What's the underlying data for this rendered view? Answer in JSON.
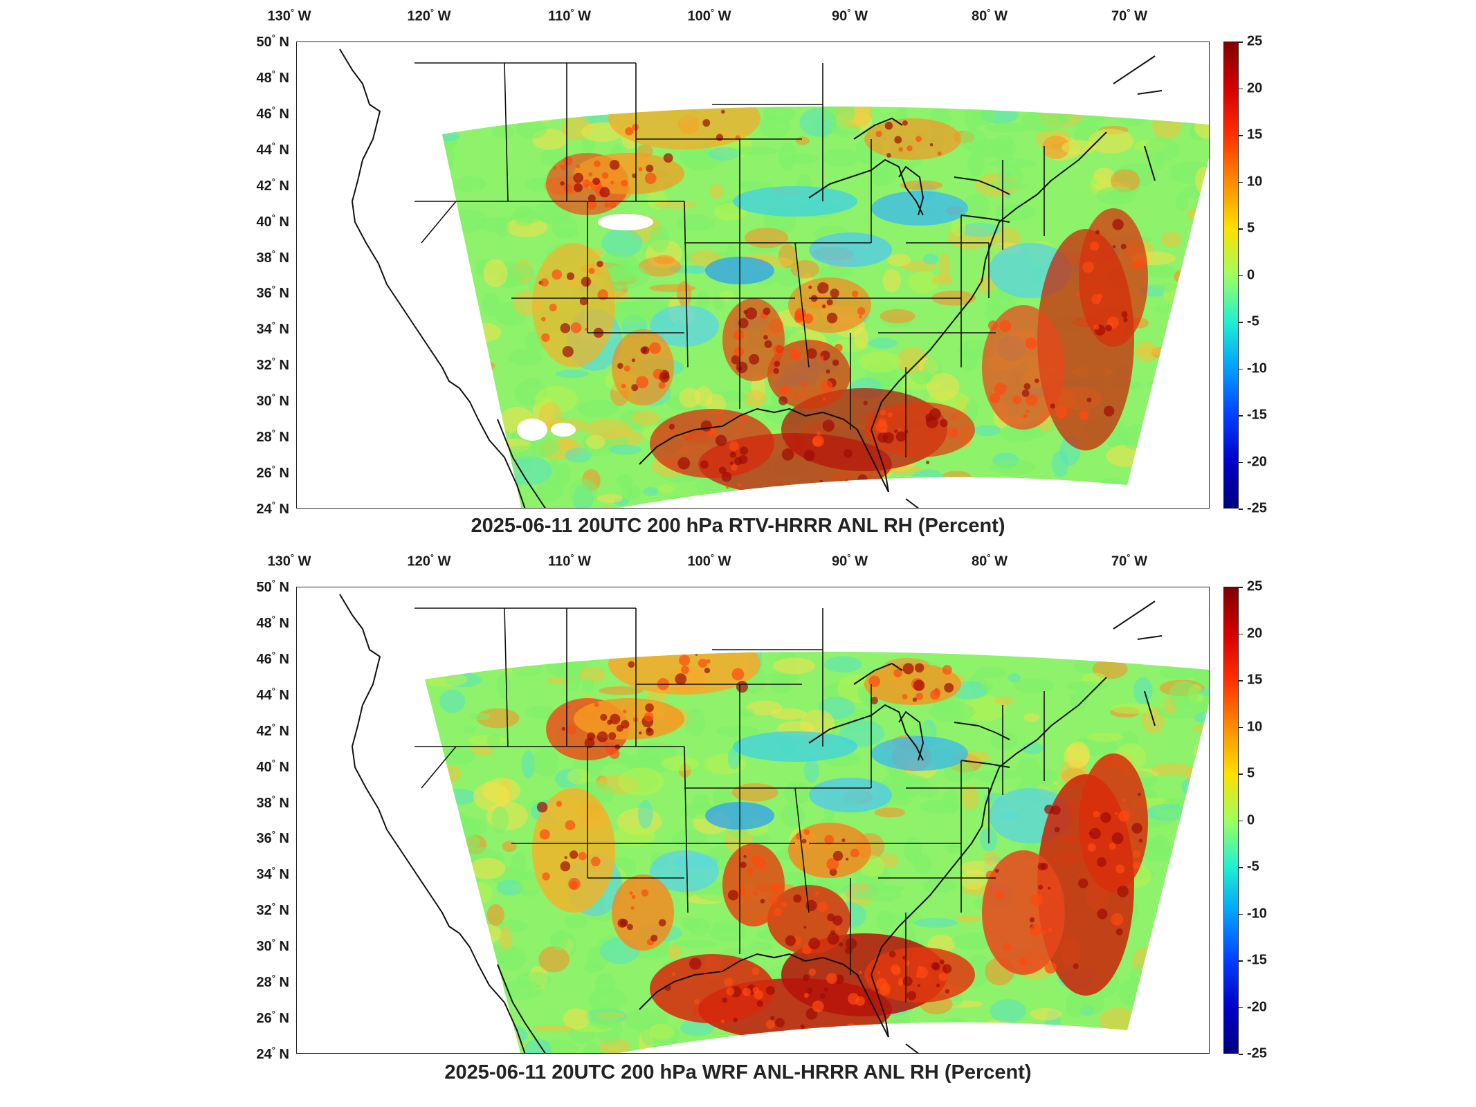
{
  "panels": [
    {
      "title": "2025-06-11 20UTC 200 hPa RTV-HRRR ANL RH (Percent)",
      "variant": "rtv"
    },
    {
      "title": "2025-06-11 20UTC 200 hPa WRF ANL-HRRR ANL RH (Percent)",
      "variant": "wrf"
    }
  ],
  "axes": {
    "lon_ticks": [
      {
        "deg": "130",
        "hemi": "W"
      },
      {
        "deg": "120",
        "hemi": "W"
      },
      {
        "deg": "110",
        "hemi": "W"
      },
      {
        "deg": "100",
        "hemi": "W"
      },
      {
        "deg": "90",
        "hemi": "W"
      },
      {
        "deg": "80",
        "hemi": "W"
      },
      {
        "deg": "70",
        "hemi": "W"
      }
    ],
    "lat_ticks": [
      {
        "deg": "50",
        "hemi": "N"
      },
      {
        "deg": "48",
        "hemi": "N"
      },
      {
        "deg": "46",
        "hemi": "N"
      },
      {
        "deg": "44",
        "hemi": "N"
      },
      {
        "deg": "42",
        "hemi": "N"
      },
      {
        "deg": "40",
        "hemi": "N"
      },
      {
        "deg": "38",
        "hemi": "N"
      },
      {
        "deg": "36",
        "hemi": "N"
      },
      {
        "deg": "34",
        "hemi": "N"
      },
      {
        "deg": "32",
        "hemi": "N"
      },
      {
        "deg": "30",
        "hemi": "N"
      },
      {
        "deg": "28",
        "hemi": "N"
      },
      {
        "deg": "26",
        "hemi": "N"
      },
      {
        "deg": "24",
        "hemi": "N"
      }
    ]
  },
  "colorbar": {
    "ticks": [
      "25",
      "20",
      "15",
      "10",
      "5",
      "0",
      "-5",
      "-10",
      "-15",
      "-20",
      "-25"
    ],
    "range": [
      -25,
      25
    ],
    "colormap": "jet",
    "colors": [
      "#800000",
      "#ff0000",
      "#ff8c00",
      "#ffff00",
      "#7fff7f",
      "#00ffff",
      "#0080ff",
      "#0000ff",
      "#00008f"
    ]
  }
}
